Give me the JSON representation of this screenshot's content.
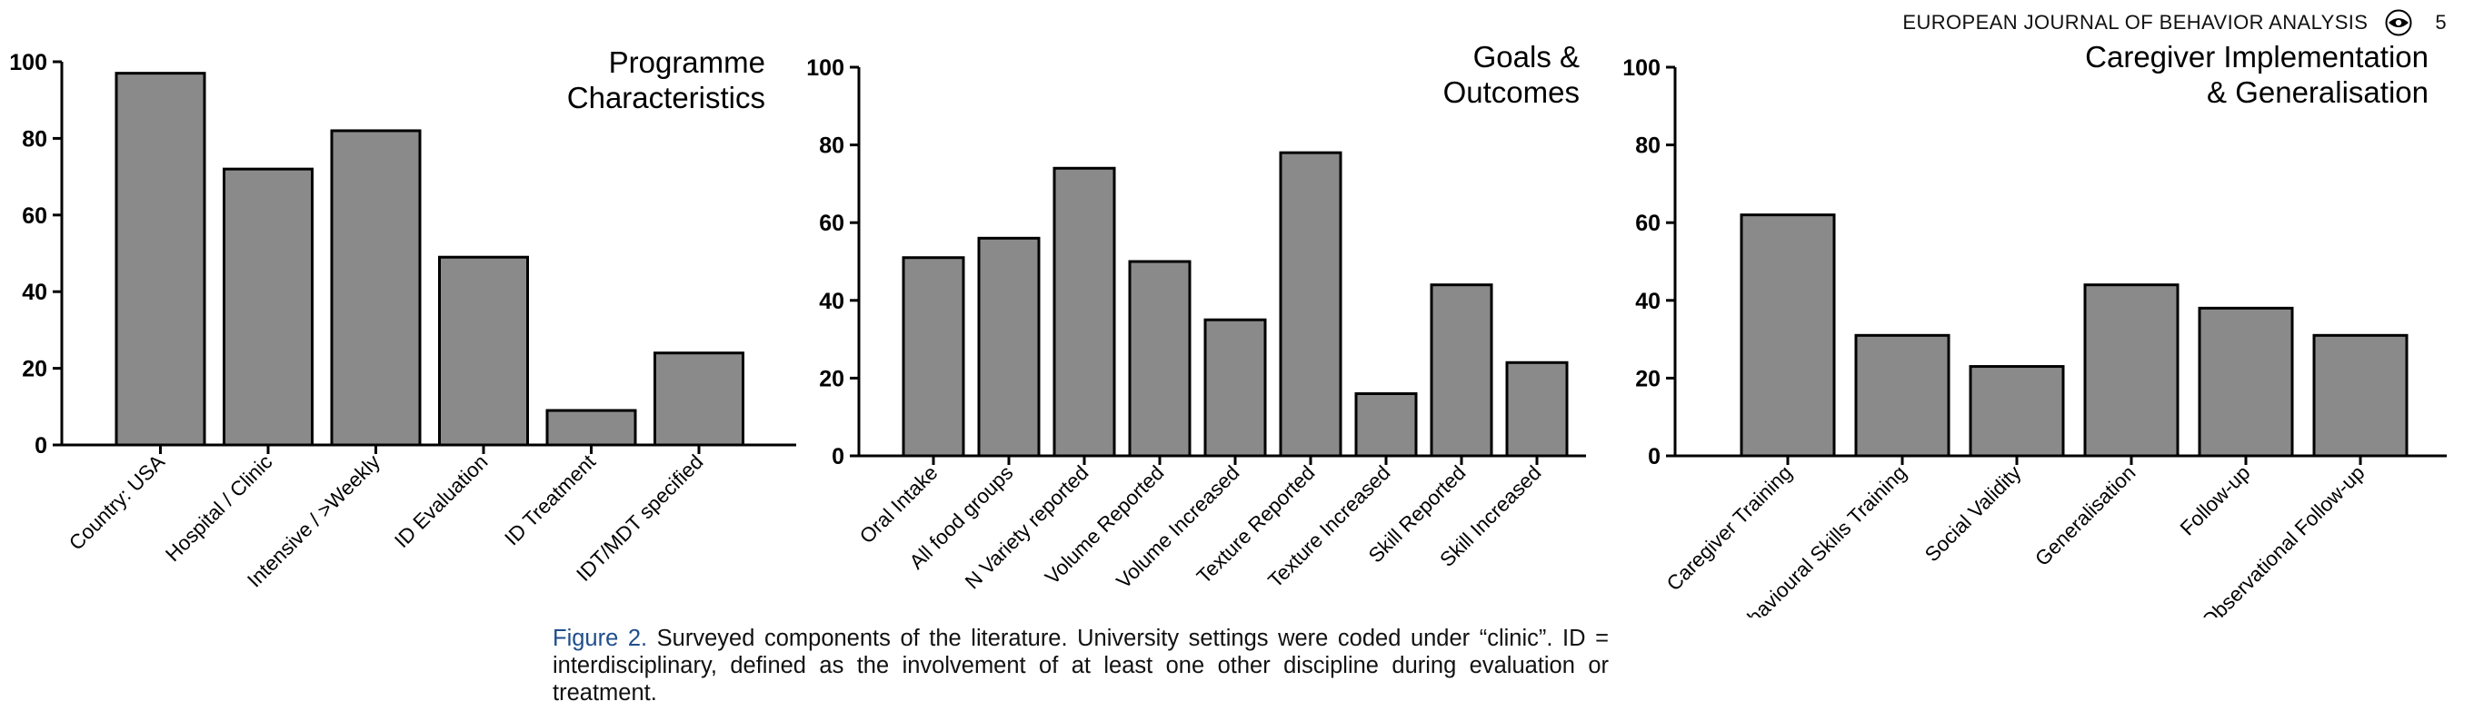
{
  "header": {
    "journal": "EUROPEAN JOURNAL OF BEHAVIOR ANALYSIS",
    "logo_icon": "eye-logo-icon",
    "page_number": "5"
  },
  "caption": {
    "figure_label": "Figure 2.",
    "text": " Surveyed components of the literature. University settings were coded under “clinic”. ID = interdisciplinary, defined as the involvement of at least one other discipline during evaluation or treatment."
  },
  "chart_data": [
    {
      "type": "bar",
      "title": [
        "Programme",
        "Characteristics"
      ],
      "categories": [
        "Country: USA",
        "Hospital / Clinic",
        "Intensive / >Weekly",
        "ID Evaluation",
        "ID Treatment",
        "IDT/MDT specified"
      ],
      "values": [
        97,
        72,
        82,
        49,
        9,
        24
      ],
      "ylim": [
        0,
        100
      ],
      "yticks": [
        0,
        20,
        40,
        60,
        80,
        100
      ],
      "xlabel": "",
      "ylabel": "",
      "grid": false,
      "bar_color": "#8a8a8a"
    },
    {
      "type": "bar",
      "title": [
        "Goals &",
        "Outcomes"
      ],
      "categories": [
        "Oral Intake",
        "All food groups",
        "N Variety reported",
        "Volume Reported",
        "Volume Increased",
        "Texture Reported",
        "Texture Increased",
        "Skill Reported",
        "Skill Increased"
      ],
      "values": [
        51,
        56,
        74,
        50,
        35,
        78,
        16,
        44,
        24
      ],
      "ylim": [
        0,
        100
      ],
      "yticks": [
        0,
        20,
        40,
        60,
        80,
        100
      ],
      "xlabel": "",
      "ylabel": "",
      "grid": false,
      "bar_color": "#8a8a8a"
    },
    {
      "type": "bar",
      "title": [
        "Caregiver Implementation",
        "& Generalisation"
      ],
      "categories": [
        "Caregiver Training",
        "Behavioural Skills Training",
        "Social Validity",
        "Generalisation",
        "Follow-up",
        "Observational Follow-up"
      ],
      "values": [
        62,
        31,
        23,
        44,
        38,
        31
      ],
      "ylim": [
        0,
        100
      ],
      "yticks": [
        0,
        20,
        40,
        60,
        80,
        100
      ],
      "xlabel": "",
      "ylabel": "",
      "grid": false,
      "bar_color": "#8a8a8a"
    }
  ]
}
